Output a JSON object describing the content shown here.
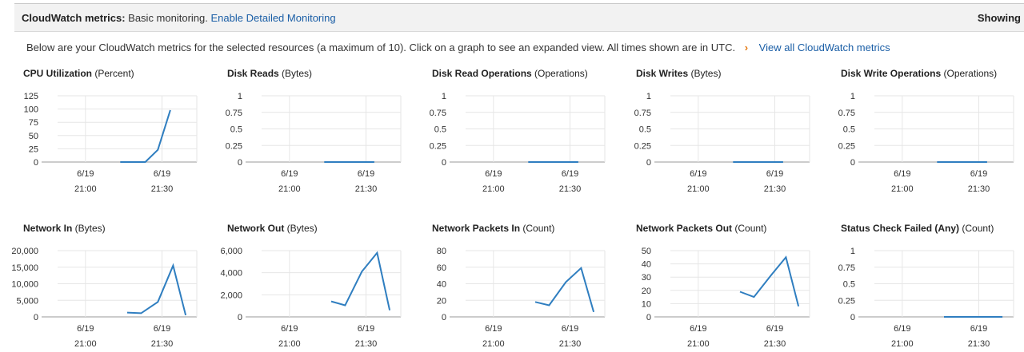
{
  "header": {
    "label": "CloudWatch metrics:",
    "monitoring": "Basic monitoring.",
    "enable_link": "Enable Detailed Monitoring",
    "right_text": "Showing"
  },
  "intro": {
    "text": "Below are your CloudWatch metrics for the selected resources (a maximum of 10). Click on a graph to see an expanded view. All times shown are in UTC.",
    "chevron": "›",
    "view_all": "View all CloudWatch metrics"
  },
  "colors": {
    "line": "#2f7ec0",
    "grid": "#e6e6e6",
    "axis": "#999999",
    "link": "#1a5ea6"
  },
  "charts": [
    {
      "title": "CPU Utilization",
      "unit": "(Percent)",
      "y_ticks": [
        "125",
        "100",
        "75",
        "50",
        "25",
        "0"
      ],
      "y_max": 125,
      "x_ticks": [
        {
          "date": "6/19",
          "time": "21:00"
        },
        {
          "date": "6/19",
          "time": "21:30"
        }
      ],
      "series": [
        [
          1,
          0
        ],
        [
          2,
          0
        ],
        [
          3,
          23
        ],
        [
          4,
          98
        ]
      ]
    },
    {
      "title": "Disk Reads",
      "unit": "(Bytes)",
      "y_ticks": [
        "1",
        "0.75",
        "0.5",
        "0.25",
        "0"
      ],
      "y_max": 1,
      "x_ticks": [
        {
          "date": "6/19",
          "time": "21:00"
        },
        {
          "date": "6/19",
          "time": "21:30"
        }
      ],
      "series": [
        [
          1,
          0
        ],
        [
          2,
          0
        ],
        [
          3,
          0
        ],
        [
          4,
          0
        ]
      ]
    },
    {
      "title": "Disk Read Operations",
      "unit": "(Operations)",
      "y_ticks": [
        "1",
        "0.75",
        "0.5",
        "0.25",
        "0"
      ],
      "y_max": 1,
      "x_ticks": [
        {
          "date": "6/19",
          "time": "21:00"
        },
        {
          "date": "6/19",
          "time": "21:30"
        }
      ],
      "series": [
        [
          1,
          0
        ],
        [
          2,
          0
        ],
        [
          3,
          0
        ],
        [
          4,
          0
        ]
      ]
    },
    {
      "title": "Disk Writes",
      "unit": "(Bytes)",
      "y_ticks": [
        "1",
        "0.75",
        "0.5",
        "0.25",
        "0"
      ],
      "y_max": 1,
      "x_ticks": [
        {
          "date": "6/19",
          "time": "21:00"
        },
        {
          "date": "6/19",
          "time": "21:30"
        }
      ],
      "series": [
        [
          1,
          0
        ],
        [
          2,
          0
        ],
        [
          3,
          0
        ],
        [
          4,
          0
        ]
      ]
    },
    {
      "title": "Disk Write Operations",
      "unit": "(Operations)",
      "y_ticks": [
        "1",
        "0.75",
        "0.5",
        "0.25",
        "0"
      ],
      "y_max": 1,
      "x_ticks": [
        {
          "date": "6/19",
          "time": "21:00"
        },
        {
          "date": "6/19",
          "time": "21:30"
        }
      ],
      "series": [
        [
          1,
          0
        ],
        [
          2,
          0
        ],
        [
          3,
          0
        ],
        [
          4,
          0
        ]
      ]
    },
    {
      "title": "Network In",
      "unit": "(Bytes)",
      "y_ticks": [
        "20,000",
        "15,000",
        "10,000",
        "5,000",
        "0"
      ],
      "y_max": 20000,
      "x_ticks": [
        {
          "date": "6/19",
          "time": "21:00"
        },
        {
          "date": "6/19",
          "time": "21:30"
        }
      ],
      "series": [
        [
          1,
          1300
        ],
        [
          2,
          1100
        ],
        [
          3,
          4500
        ],
        [
          4,
          15500
        ],
        [
          5,
          500
        ]
      ]
    },
    {
      "title": "Network Out",
      "unit": "(Bytes)",
      "y_ticks": [
        "6,000",
        "4,000",
        "2,000",
        "0"
      ],
      "y_max": 6000,
      "x_ticks": [
        {
          "date": "6/19",
          "time": "21:00"
        },
        {
          "date": "6/19",
          "time": "21:30"
        }
      ],
      "series": [
        [
          1,
          1400
        ],
        [
          2,
          1050
        ],
        [
          3,
          4100
        ],
        [
          4,
          5800
        ],
        [
          5,
          600
        ]
      ]
    },
    {
      "title": "Network Packets In",
      "unit": "(Count)",
      "y_ticks": [
        "80",
        "60",
        "40",
        "20",
        "0"
      ],
      "y_max": 80,
      "x_ticks": [
        {
          "date": "6/19",
          "time": "21:00"
        },
        {
          "date": "6/19",
          "time": "21:30"
        }
      ],
      "series": [
        [
          1,
          18
        ],
        [
          2,
          14
        ],
        [
          3,
          42
        ],
        [
          4,
          59
        ],
        [
          5,
          6
        ]
      ]
    },
    {
      "title": "Network Packets Out",
      "unit": "(Count)",
      "y_ticks": [
        "50",
        "40",
        "30",
        "20",
        "10",
        "0"
      ],
      "y_max": 50,
      "x_ticks": [
        {
          "date": "6/19",
          "time": "21:00"
        },
        {
          "date": "6/19",
          "time": "21:30"
        }
      ],
      "series": [
        [
          1,
          19
        ],
        [
          2,
          15
        ],
        [
          3,
          31
        ],
        [
          4,
          45
        ],
        [
          5,
          8
        ]
      ]
    },
    {
      "title": "Status Check Failed (Any)",
      "unit": "(Count)",
      "y_ticks": [
        "1",
        "0.75",
        "0.5",
        "0.25",
        "0"
      ],
      "y_max": 1,
      "x_ticks": [
        {
          "date": "6/19",
          "time": "21:00"
        },
        {
          "date": "6/19",
          "time": "21:30"
        }
      ],
      "series": [
        [
          1,
          0
        ],
        [
          2,
          0
        ],
        [
          3,
          0
        ],
        [
          4,
          0
        ],
        [
          5,
          0
        ]
      ]
    }
  ]
}
